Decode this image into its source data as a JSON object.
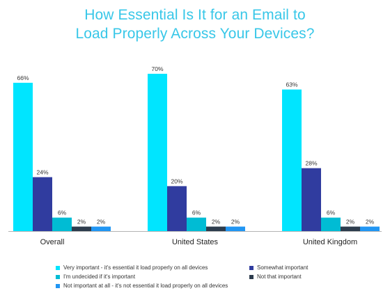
{
  "chart_data": {
    "type": "bar",
    "title_lines": [
      "How Essential Is It for an Email to",
      "Load Properly Across Your Devices?"
    ],
    "categories": [
      "Overall",
      "United States",
      "United Kingdom"
    ],
    "series": [
      {
        "name": "Very important - it's essential it load properly on all devices",
        "color": "#00e5ff",
        "values": [
          66,
          70,
          63
        ],
        "labels": [
          "66%",
          "70%",
          "63%"
        ]
      },
      {
        "name": "Somewhat important",
        "color": "#303c9f",
        "values": [
          24,
          20,
          28
        ],
        "labels": [
          "24%",
          "20%",
          "28%"
        ]
      },
      {
        "name": "I'm undecided if it's important",
        "color": "#00bcd4",
        "values": [
          6,
          6,
          6
        ],
        "labels": [
          "6%",
          "6%",
          "6%"
        ]
      },
      {
        "name": "Not that important",
        "color": "#2d3c4d",
        "values": [
          2,
          2,
          2
        ],
        "labels": [
          "2%",
          "2%",
          "2%"
        ]
      },
      {
        "name": "Not important at all - it's not essential it load properly on all devices",
        "color": "#2196f3",
        "values": [
          2,
          2,
          2
        ],
        "labels": [
          "2%",
          "2%",
          "2%"
        ]
      }
    ],
    "xlabel": "",
    "ylabel": "",
    "ylim": [
      0,
      70
    ],
    "grid": false,
    "legend_position": "bottom"
  }
}
